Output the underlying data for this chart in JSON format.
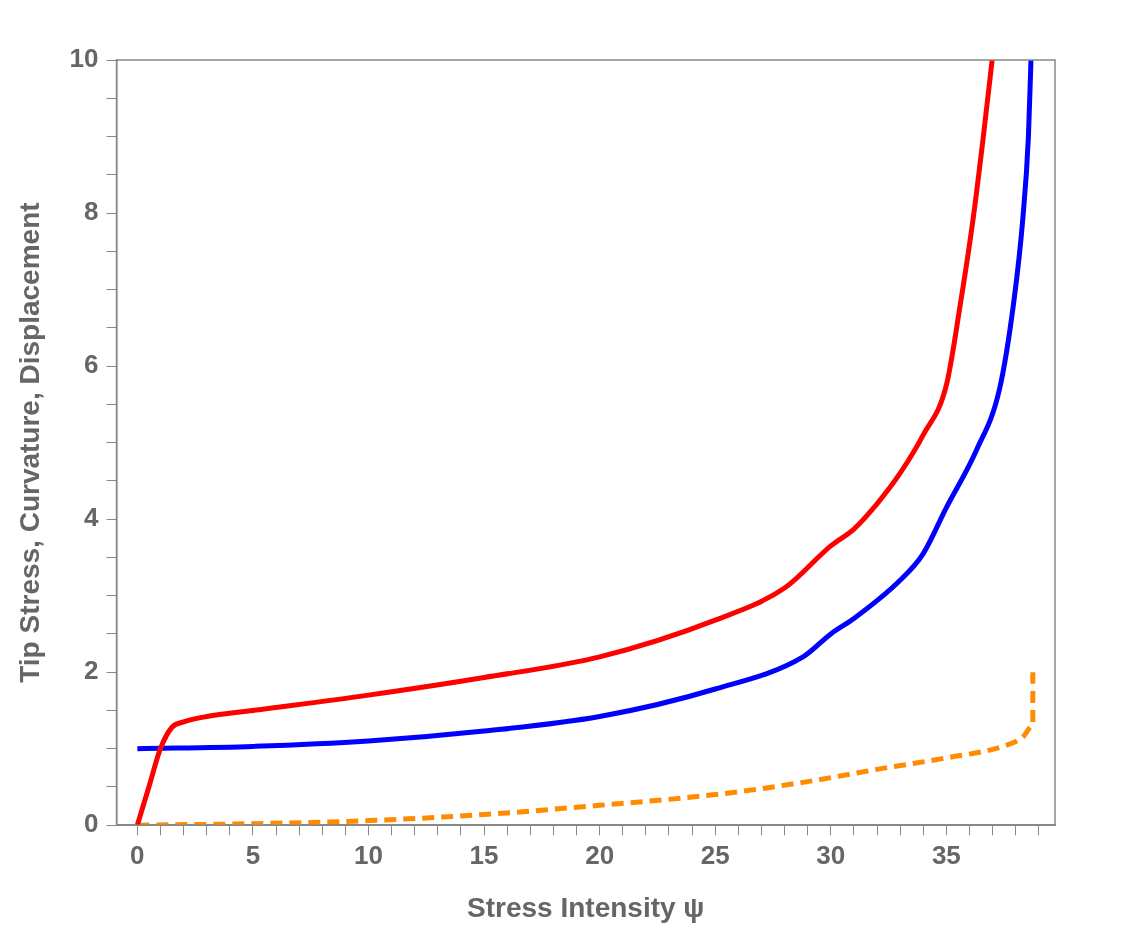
{
  "chart_data": {
    "type": "line",
    "xlabel": "Stress Intensity ψ",
    "ylabel": "Tip Stress, Curvature, Displacement",
    "xlim": [
      -0.9,
      39.7
    ],
    "ylim": [
      0,
      10
    ],
    "xticks": [
      0,
      {
        "value": 1,
        "label": null
      },
      {
        "value": 2,
        "label": null
      },
      {
        "value": 3,
        "label": null
      },
      {
        "value": 4,
        "label": null
      },
      5,
      {
        "value": 6,
        "label": null
      },
      {
        "value": 7,
        "label": null
      },
      {
        "value": 8,
        "label": null
      },
      {
        "value": 9,
        "label": null
      },
      10,
      {
        "value": 11,
        "label": null
      },
      {
        "value": 12,
        "label": null
      },
      {
        "value": 13,
        "label": null
      },
      {
        "value": 14,
        "label": null
      },
      15,
      {
        "value": 16,
        "label": null
      },
      {
        "value": 17,
        "label": null
      },
      {
        "value": 18,
        "label": null
      },
      {
        "value": 19,
        "label": null
      },
      20,
      {
        "value": 21,
        "label": null
      },
      {
        "value": 22,
        "label": null
      },
      {
        "value": 23,
        "label": null
      },
      {
        "value": 24,
        "label": null
      },
      25,
      {
        "value": 26,
        "label": null
      },
      {
        "value": 27,
        "label": null
      },
      {
        "value": 28,
        "label": null
      },
      {
        "value": 29,
        "label": null
      },
      30,
      {
        "value": 31,
        "label": null
      },
      {
        "value": 32,
        "label": null
      },
      {
        "value": 33,
        "label": null
      },
      {
        "value": 34,
        "label": null
      },
      35,
      {
        "value": 36,
        "label": null
      },
      {
        "value": 37,
        "label": null
      },
      {
        "value": 38,
        "label": null
      },
      {
        "value": 39,
        "label": null
      }
    ],
    "yticks": [
      0,
      {
        "value": 0.5,
        "label": null
      },
      {
        "value": 1,
        "label": null
      },
      {
        "value": 1.5,
        "label": null
      },
      2,
      {
        "value": 2.5,
        "label": null
      },
      {
        "value": 3,
        "label": null
      },
      {
        "value": 3.5,
        "label": null
      },
      4,
      {
        "value": 4.5,
        "label": null
      },
      {
        "value": 5,
        "label": null
      },
      {
        "value": 5.5,
        "label": null
      },
      6,
      {
        "value": 6.5,
        "label": null
      },
      {
        "value": 7,
        "label": null
      },
      {
        "value": 7.5,
        "label": null
      },
      8,
      {
        "value": 8.5,
        "label": null
      },
      {
        "value": 9,
        "label": null
      },
      {
        "value": 9.5,
        "label": null
      },
      10
    ],
    "grid": false,
    "legend": false,
    "marker": "none",
    "series": [
      {
        "color": "#ff0000",
        "line_style": "solid",
        "x": [
          0,
          0.5,
          1,
          1.5,
          2,
          3,
          5,
          10,
          15,
          20,
          25,
          28,
          30,
          31,
          32,
          33,
          34,
          35,
          35.6,
          36.16,
          36.6,
          36.98
        ],
        "values": [
          0,
          0.5,
          1.0,
          1.28,
          1.35,
          1.42,
          1.5,
          1.7,
          1.93,
          2.2,
          2.68,
          3.1,
          3.65,
          3.87,
          4.2,
          4.6,
          5.1,
          5.75,
          6.8,
          7.93,
          9,
          10
        ]
      },
      {
        "color": "#0000ff",
        "line_style": "solid",
        "x": [
          0,
          5,
          10,
          15,
          20,
          25,
          28.8,
          30,
          31,
          33,
          34,
          35,
          36.3,
          37.3,
          37.9,
          38.3,
          38.55,
          38.66
        ],
        "values": [
          1.0,
          1.03,
          1.1,
          1.23,
          1.42,
          1.78,
          2.2,
          2.5,
          2.7,
          3.2,
          3.55,
          4.15,
          4.9,
          5.7,
          6.8,
          7.9,
          9,
          10
        ]
      },
      {
        "color": "#ff8c00",
        "line_style": "dashed",
        "x": [
          0,
          5,
          10,
          15,
          20,
          25,
          28.8,
          32,
          35,
          37.45,
          38.3,
          38.74,
          38.74
        ],
        "values": [
          0,
          0.02,
          0.06,
          0.14,
          0.26,
          0.4,
          0.56,
          0.73,
          0.88,
          1.03,
          1.15,
          1.3,
          2.0
        ]
      }
    ]
  }
}
